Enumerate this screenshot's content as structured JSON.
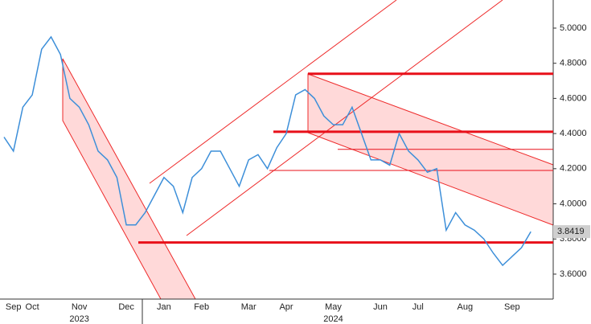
{
  "chart_data": {
    "type": "line",
    "categories": [
      null,
      "Sep",
      null,
      "Oct",
      null,
      null,
      null,
      null,
      "Nov",
      null,
      null,
      null,
      null,
      "Dec",
      null,
      null,
      null,
      "Jan",
      null,
      null,
      null,
      "Feb",
      null,
      null,
      null,
      null,
      "Mar",
      null,
      null,
      null,
      "Apr",
      null,
      null,
      null,
      null,
      "May",
      null,
      null,
      null,
      null,
      "Jun",
      null,
      null,
      null,
      "Jul",
      null,
      null,
      null,
      null,
      "Aug",
      null,
      null,
      null,
      null,
      "Sep",
      null,
      null
    ],
    "years": [
      null,
      null,
      null,
      null,
      null,
      null,
      null,
      null,
      "2023",
      null,
      null,
      null,
      null,
      null,
      null,
      null,
      null,
      null,
      null,
      null,
      null,
      null,
      null,
      null,
      null,
      null,
      null,
      null,
      null,
      null,
      null,
      null,
      null,
      null,
      null,
      "2024",
      null,
      null,
      null,
      null,
      null,
      null,
      null,
      null,
      null,
      null,
      null,
      null,
      null,
      null,
      null,
      null,
      null,
      null,
      null,
      null,
      null
    ],
    "series": [
      {
        "color": "#3d8fd9",
        "values": [
          4.38,
          4.3,
          4.55,
          4.62,
          4.88,
          4.95,
          4.85,
          4.6,
          4.55,
          4.45,
          4.3,
          4.25,
          4.15,
          3.88,
          3.88,
          3.95,
          4.05,
          4.15,
          4.1,
          3.95,
          4.15,
          4.2,
          4.3,
          4.3,
          4.2,
          4.1,
          4.25,
          4.28,
          4.2,
          4.32,
          4.4,
          4.62,
          4.65,
          4.6,
          4.5,
          4.45,
          4.45,
          4.55,
          4.4,
          4.25,
          4.25,
          4.22,
          4.4,
          4.3,
          4.25,
          4.18,
          4.2,
          3.85,
          3.95,
          3.88,
          3.85,
          3.8,
          3.72,
          3.65,
          3.7,
          3.75,
          3.8419
        ]
      }
    ],
    "levels": [
      4.74,
      4.41,
      3.78,
      4.31,
      4.19
    ],
    "ylim": [
      3.458,
      5.16
    ],
    "yticks": [
      {
        "value": 3.6,
        "label": "3.6000"
      },
      {
        "value": 3.8,
        "label": "3.8000"
      },
      {
        "value": 4.0,
        "label": "4.0000"
      },
      {
        "value": 4.2,
        "label": "4.2000"
      },
      {
        "value": 4.4,
        "label": "4.4000"
      },
      {
        "value": 4.6,
        "label": "4.6000"
      },
      {
        "value": 4.8,
        "label": "4.8000"
      },
      {
        "value": 5.0,
        "label": "5.0000"
      }
    ]
  }
}
